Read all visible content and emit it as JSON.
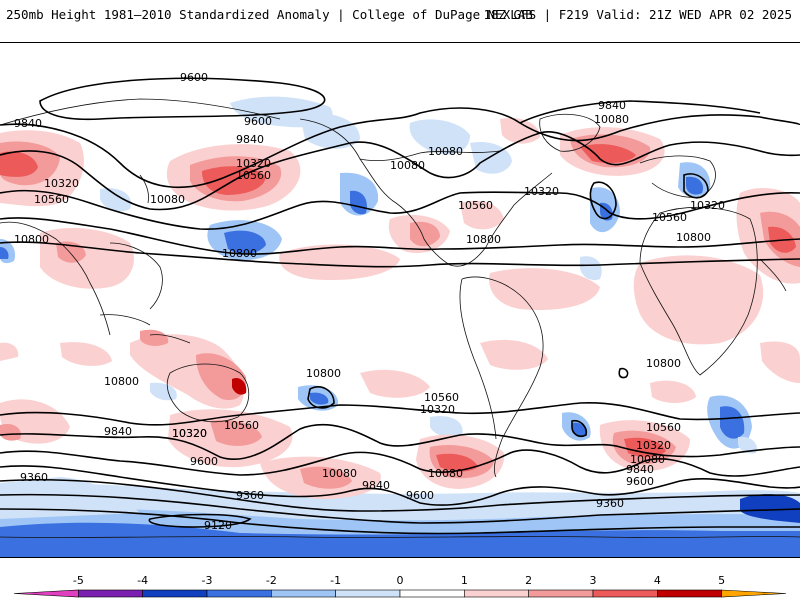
{
  "header": {
    "title": "250mb Height 1981–2010 Standardized Anomaly | College of DuPage NEXLAB",
    "run_info": "18Z GFS | F219 Valid: 21Z WED APR 02 2025"
  },
  "colorbar": {
    "ticks": [
      "-5",
      "-4",
      "-3",
      "-2",
      "-1",
      "0",
      "1",
      "2",
      "3",
      "4",
      "5"
    ],
    "colors": [
      "#e040c0",
      "#7a1fb0",
      "#1040c0",
      "#3a70e0",
      "#9ec5f5",
      "#cfe2f8",
      "#ffffff",
      "#fbd0d0",
      "#f39a9a",
      "#ec5a5a",
      "#c00000",
      "#ffa500"
    ]
  },
  "contour_labels": [
    "9600",
    "9840",
    "9840",
    "10080",
    "10080",
    "10320",
    "10320",
    "10560",
    "10560",
    "10800",
    "9600",
    "10080",
    "9840",
    "10320",
    "10560",
    "10800",
    "10080",
    "10560",
    "10320",
    "10800",
    "10800",
    "10800",
    "10320",
    "10080",
    "10560",
    "10320",
    "10080",
    "9840",
    "9600",
    "10800",
    "9840",
    "10320",
    "9600",
    "10080",
    "9840",
    "9360",
    "9360",
    "9600",
    "9120",
    "10560",
    "10320",
    "10560",
    "9360",
    "10800"
  ],
  "map": {
    "projection": "cylindrical global",
    "anomaly_colors": {
      "pos1": "#fbd0d0",
      "pos2": "#f39a9a",
      "pos3": "#ec5a5a",
      "pos4": "#c00000",
      "neg1": "#cfe2f8",
      "neg2": "#9ec5f5",
      "neg3": "#3a70e0",
      "neg4": "#1040c0"
    }
  }
}
